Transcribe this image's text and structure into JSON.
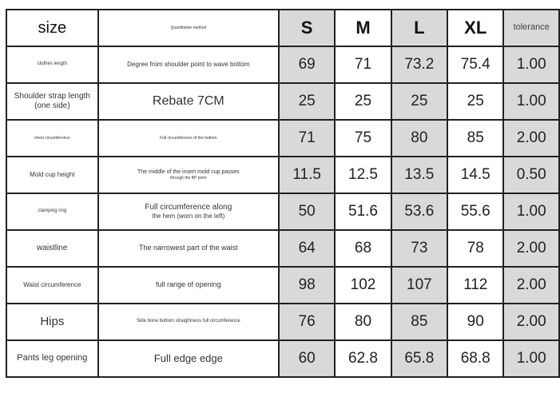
{
  "header": {
    "size": "size",
    "method": "Quantitative method",
    "sizes": [
      "S",
      "M",
      "L",
      "XL"
    ],
    "tolerance": "tolerance"
  },
  "rows": [
    {
      "label": "clothes length",
      "method": [
        "Degree from shoulder point to wave bottom"
      ],
      "values": [
        "69",
        "71",
        "73.2",
        "75.4"
      ],
      "tolerance": "1.00"
    },
    {
      "label": "Shoulder strap length (one side)",
      "method": [
        "Rebate 7CM"
      ],
      "values": [
        "25",
        "25",
        "25",
        "25"
      ],
      "tolerance": "1.00"
    },
    {
      "label": "chest circumference",
      "method": [
        "Full circumference of the bottom"
      ],
      "values": [
        "71",
        "75",
        "80",
        "85"
      ],
      "tolerance": "2.00"
    },
    {
      "label": "Mold cup height",
      "method": [
        "The middle of the insert mold cup passes",
        "through the BP point"
      ],
      "values": [
        "11.5",
        "12.5",
        "13.5",
        "14.5"
      ],
      "tolerance": "0.50"
    },
    {
      "label": "clamping ring",
      "method": [
        "Full circumference along",
        "the hem (worn on the left)"
      ],
      "values": [
        "50",
        "51.6",
        "53.6",
        "55.6"
      ],
      "tolerance": "1.00"
    },
    {
      "label": "waistline",
      "method": [
        "The narrowest part of the waist"
      ],
      "values": [
        "64",
        "68",
        "73",
        "78"
      ],
      "tolerance": "2.00"
    },
    {
      "label": "Waist circumference",
      "method": [
        "full range of opening"
      ],
      "values": [
        "98",
        "102",
        "107",
        "112"
      ],
      "tolerance": "2.00"
    },
    {
      "label": "Hips",
      "method": [
        "Side bone bottom straightness full circumference"
      ],
      "values": [
        "76",
        "80",
        "85",
        "90"
      ],
      "tolerance": "2.00"
    },
    {
      "label": "Pants leg opening",
      "method": [
        "Full edge edge"
      ],
      "values": [
        "60",
        "62.8",
        "65.8",
        "68.8"
      ],
      "tolerance": "1.00"
    }
  ],
  "colors": {
    "grey_column": "#d9d9d9",
    "border": "#222222"
  }
}
